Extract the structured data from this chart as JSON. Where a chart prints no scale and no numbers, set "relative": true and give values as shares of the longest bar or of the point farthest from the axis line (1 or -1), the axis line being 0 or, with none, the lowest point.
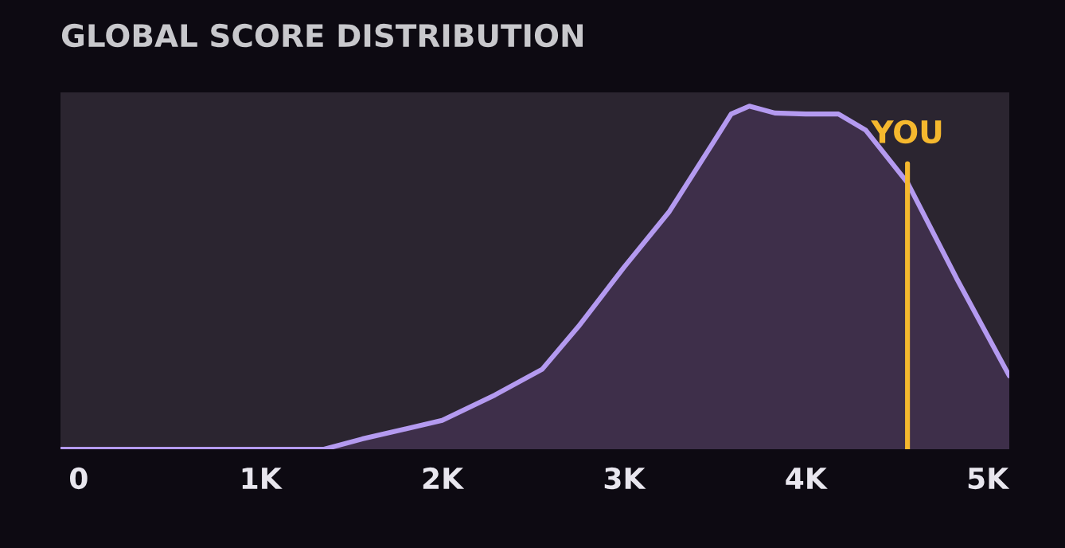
{
  "chart_data": {
    "type": "area",
    "title": "GLOBAL SCORE DISTRIBUTION",
    "relative": true,
    "x": [
      -100,
      1350,
      1560,
      2000,
      2290,
      2550,
      2750,
      3000,
      3250,
      3490,
      3590,
      3690,
      3830,
      4000,
      4180,
      4330,
      4560,
      4830,
      5120
    ],
    "series": [
      {
        "color": "#b49af0",
        "values": [
          0,
          0,
          0.03,
          0.084,
          0.158,
          0.233,
          0.358,
          0.53,
          0.693,
          0.893,
          0.977,
          1,
          0.98,
          0.977,
          0.977,
          0.93,
          0.777,
          0.498,
          0.214
        ]
      }
    ],
    "xlim": [
      -100,
      5120
    ],
    "xticks": [
      {
        "value": 0,
        "label": "0"
      },
      {
        "value": 1000,
        "label": "1K"
      },
      {
        "value": 2000,
        "label": "2K"
      },
      {
        "value": 3000,
        "label": "3K"
      },
      {
        "value": 4000,
        "label": "4K"
      },
      {
        "value": 5000,
        "label": "5K"
      }
    ],
    "ref_lines": [
      {
        "axis": "x",
        "value": 4560,
        "label": "YOU",
        "color": "#f5b82e"
      }
    ],
    "grid": false,
    "tick_labels": "x"
  }
}
